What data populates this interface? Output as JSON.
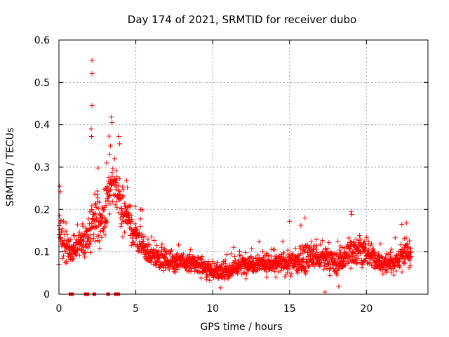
{
  "chart_data": {
    "type": "scatter",
    "title": "Day 174 of 2021, SRMTID for receiver dubo",
    "xlabel": "GPS time / hours",
    "ylabel": "SRMTID / TECUs",
    "xlim": [
      0,
      24
    ],
    "ylim": [
      0,
      0.6
    ],
    "xticks": [
      0,
      5,
      10,
      15,
      20
    ],
    "yticks": [
      0,
      0.1,
      0.2,
      0.3,
      0.4,
      0.5,
      0.6
    ],
    "xtick_labels": [
      "0",
      "5",
      "10",
      "15",
      "20"
    ],
    "ytick_labels": [
      "0",
      "0.1",
      "0.2",
      "0.3",
      "0.4",
      "0.5",
      "0.6"
    ],
    "grid": true,
    "marker": "plus",
    "marker_color": "#ff0000",
    "series": [
      {
        "name": "SRMTID",
        "profile_hours": [
          0,
          0.3,
          0.8,
          1.2,
          1.6,
          2.0,
          2.2,
          2.5,
          2.8,
          3.0,
          3.3,
          3.6,
          3.8,
          4.1,
          4.4,
          4.8,
          5.3,
          6.0,
          7.0,
          8.0,
          9.0,
          10.0,
          10.5,
          11.0,
          12.0,
          13.0,
          14.0,
          15.0,
          15.5,
          16.0,
          16.5,
          17.0,
          17.5,
          18.0,
          18.5,
          19.0,
          19.5,
          20.0,
          20.5,
          21.0,
          21.5,
          22.0,
          22.5,
          22.9
        ],
        "profile_median": [
          0.15,
          0.11,
          0.1,
          0.12,
          0.12,
          0.14,
          0.18,
          0.2,
          0.16,
          0.18,
          0.24,
          0.26,
          0.25,
          0.2,
          0.19,
          0.15,
          0.12,
          0.09,
          0.08,
          0.075,
          0.07,
          0.055,
          0.05,
          0.055,
          0.07,
          0.075,
          0.07,
          0.075,
          0.075,
          0.085,
          0.09,
          0.08,
          0.085,
          0.07,
          0.085,
          0.1,
          0.11,
          0.09,
          0.085,
          0.07,
          0.075,
          0.08,
          0.1,
          0.09
        ],
        "profile_spread": [
          0.06,
          0.04,
          0.035,
          0.04,
          0.05,
          0.06,
          0.08,
          0.1,
          0.07,
          0.08,
          0.09,
          0.08,
          0.07,
          0.06,
          0.06,
          0.05,
          0.045,
          0.035,
          0.03,
          0.03,
          0.03,
          0.025,
          0.025,
          0.025,
          0.03,
          0.03,
          0.03,
          0.035,
          0.04,
          0.045,
          0.04,
          0.035,
          0.04,
          0.035,
          0.045,
          0.05,
          0.04,
          0.035,
          0.035,
          0.03,
          0.035,
          0.04,
          0.045,
          0.04
        ],
        "highlights": [
          {
            "x": 2.15,
            "y": 0.552
          },
          {
            "x": 2.15,
            "y": 0.521
          },
          {
            "x": 2.15,
            "y": 0.445
          },
          {
            "x": 2.1,
            "y": 0.39
          },
          {
            "x": 2.12,
            "y": 0.372
          },
          {
            "x": 3.4,
            "y": 0.418
          },
          {
            "x": 3.45,
            "y": 0.405
          },
          {
            "x": 3.25,
            "y": 0.373
          },
          {
            "x": 3.35,
            "y": 0.35
          },
          {
            "x": 3.3,
            "y": 0.33
          },
          {
            "x": 3.1,
            "y": 0.31
          },
          {
            "x": 3.9,
            "y": 0.372
          },
          {
            "x": 3.95,
            "y": 0.355
          },
          {
            "x": 0.05,
            "y": 0.255
          },
          {
            "x": 0.1,
            "y": 0.242
          },
          {
            "x": 4.4,
            "y": 0.268
          },
          {
            "x": 4.45,
            "y": 0.252
          },
          {
            "x": 19.0,
            "y": 0.195
          },
          {
            "x": 19.05,
            "y": 0.188
          },
          {
            "x": 16.0,
            "y": 0.18
          },
          {
            "x": 15.0,
            "y": 0.172
          },
          {
            "x": 22.6,
            "y": 0.168
          },
          {
            "x": 22.3,
            "y": 0.165
          },
          {
            "x": 10.5,
            "y": 0.015
          },
          {
            "x": 18.2,
            "y": 0.018
          },
          {
            "x": 17.3,
            "y": 0.005
          },
          {
            "x": 0.0,
            "y": 0.07
          }
        ],
        "zero_hours": [
          0.75,
          0.85,
          1.75,
          1.85,
          2.3,
          3.2,
          3.7,
          3.85
        ]
      }
    ]
  }
}
